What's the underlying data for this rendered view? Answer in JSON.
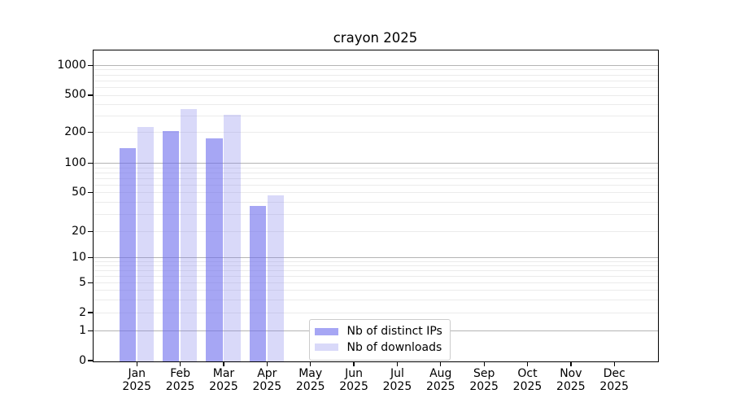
{
  "chart_data": {
    "type": "bar",
    "title": "crayon 2025",
    "x_categories": [
      "Jan",
      "Feb",
      "Mar",
      "Apr",
      "May",
      "Jun",
      "Jul",
      "Aug",
      "Sep",
      "Oct",
      "Nov",
      "Dec"
    ],
    "x_year_label": "2025",
    "y_ticks": [
      0,
      1,
      2,
      5,
      10,
      20,
      50,
      100,
      200,
      500,
      1000
    ],
    "y_scale": "symlog-like (logarithmic above 1, linear 0-1)",
    "grid": "horizontal, major at 1/10/100/1000, faint minors between",
    "legend_position": "lower-center-inside",
    "series": [
      {
        "name": "Nb of distinct IPs",
        "apparent_color": "#a6a6f4",
        "rgba": "rgba(107,107,237,0.6)",
        "values": [
          140,
          205,
          175,
          37,
          0,
          0,
          0,
          0,
          0,
          0,
          0,
          0
        ]
      },
      {
        "name": "Nb of downloads",
        "apparent_color": "#d9d9f9",
        "rgba": "rgba(128,128,235,0.3)",
        "values": [
          230,
          360,
          310,
          47,
          0,
          0,
          0,
          0,
          0,
          0,
          0,
          0
        ]
      }
    ]
  }
}
